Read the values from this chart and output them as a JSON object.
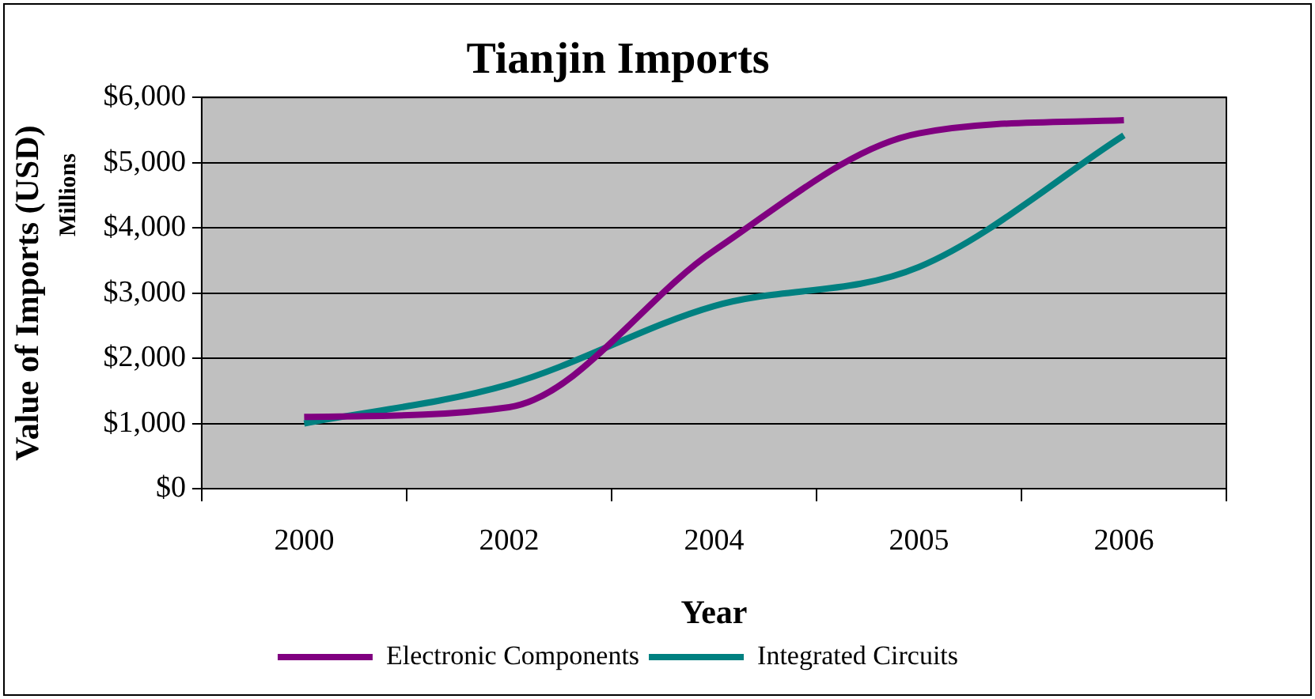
{
  "chart_data": {
    "type": "line",
    "title": "Tianjin Imports",
    "xlabel": "Year",
    "ylabel": "Value of Imports (USD)",
    "annotations": [
      "Millions"
    ],
    "categories": [
      "2000",
      "2002",
      "2004",
      "2005",
      "2006"
    ],
    "series": [
      {
        "name": "Electronic Components",
        "color": "#800080",
        "values": [
          1100,
          1250,
          3650,
          5450,
          5650
        ]
      },
      {
        "name": "Integrated Circuits",
        "color": "#008080",
        "values": [
          1000,
          1600,
          2800,
          3400,
          5420
        ]
      }
    ],
    "ylim": [
      0,
      6000
    ],
    "yticks": [
      {
        "value": 0,
        "label": "$0"
      },
      {
        "value": 1000,
        "label": "$1,000"
      },
      {
        "value": 2000,
        "label": "$2,000"
      },
      {
        "value": 3000,
        "label": "$3,000"
      },
      {
        "value": 4000,
        "label": "$4,000"
      },
      {
        "value": 5000,
        "label": "$5,000"
      },
      {
        "value": 6000,
        "label": "$6,000"
      }
    ],
    "grid": "y",
    "legend": "bottom",
    "marker": "none",
    "line_style": "solid"
  }
}
